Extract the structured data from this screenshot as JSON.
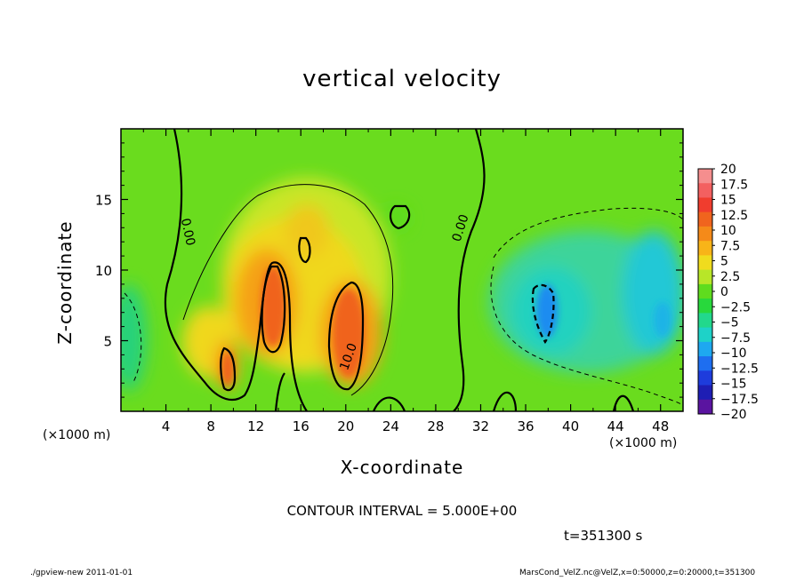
{
  "chart_data": {
    "type": "heatmap",
    "title": "vertical velocity",
    "xlabel": "X-coordinate",
    "ylabel": "Z-coordinate",
    "x_unit": "(×1000 m)",
    "xlim": [
      0,
      50
    ],
    "ylim": [
      0,
      20
    ],
    "x_ticks": [
      4,
      8,
      12,
      16,
      20,
      24,
      28,
      32,
      36,
      40,
      44,
      48
    ],
    "y_ticks": [
      5,
      10,
      15
    ],
    "colorbar": {
      "labels": [
        "20",
        "17.5",
        "15",
        "12.5",
        "10",
        "7.5",
        "5",
        "2.5",
        "0",
        "−2.5",
        "−5",
        "−7.5",
        "−10",
        "−12.5",
        "−15",
        "−17.5",
        "−20"
      ],
      "colors": [
        "#f58e8e",
        "#f36060",
        "#f03d2e",
        "#f0641e",
        "#f58a19",
        "#f8b418",
        "#f0dc1e",
        "#b8e628",
        "#5fdc1e",
        "#28d83c",
        "#22d88c",
        "#1ed2c8",
        "#1ea8f0",
        "#1e6ef0",
        "#1e3cdc",
        "#1e1eb4",
        "#5a14a0"
      ]
    },
    "contour_labels": [
      "0.00",
      "0.00",
      "10.0"
    ],
    "contour_interval": "CONTOUR INTERVAL = 5.000E+00",
    "time": "t=351300 s"
  },
  "footer": {
    "left": "./gpview-new   2011-01-01",
    "right": "MarsCond_VelZ.nc@VelZ,x=0:50000,z=0:20000,t=351300"
  }
}
